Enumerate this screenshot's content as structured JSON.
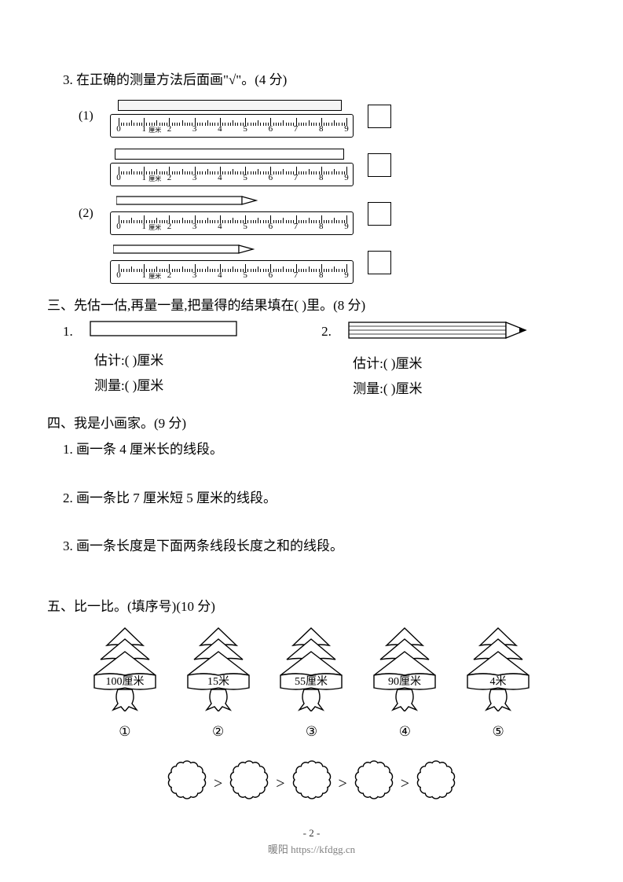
{
  "q3": {
    "header": "3.  在正确的测量方法后面画\"√\"。(4 分)",
    "sub1": "(1)",
    "sub2": "(2)",
    "ruler_ticks": [
      "0",
      "1",
      "2",
      "3",
      "4",
      "5",
      "6",
      "7",
      "8",
      "9"
    ],
    "ruler_unit": "厘米"
  },
  "sec3": {
    "header": "三、先估一估,再量一量,把量得的结果填在(        )里。(8 分)",
    "n1": "1.",
    "n2": "2.",
    "est_label": "估计:(        )厘米",
    "mea_label": "测量:(        )厘米"
  },
  "sec4": {
    "header": "四、我是小画家。(9 分)",
    "q1": "1.  画一条 4 厘米长的线段。",
    "q2": "2.  画一条比 7 厘米短 5 厘米的线段。",
    "q3": "3.  画一条长度是下面两条线段长度之和的线段。"
  },
  "sec5": {
    "header": "五、比一比。(填序号)(10 分)",
    "trees": [
      {
        "label": "100厘米",
        "num": "①"
      },
      {
        "label": "15米",
        "num": "②"
      },
      {
        "label": "55厘米",
        "num": "③"
      },
      {
        "label": "90厘米",
        "num": "④"
      },
      {
        "label": "4米",
        "num": "⑤"
      }
    ],
    "gt": ">"
  },
  "footer": {
    "page": "- 2 -",
    "watermark": "暖阳 https://kfdgg.cn"
  },
  "colors": {
    "text": "#000000",
    "bg": "#ffffff",
    "gray": "#808080"
  }
}
